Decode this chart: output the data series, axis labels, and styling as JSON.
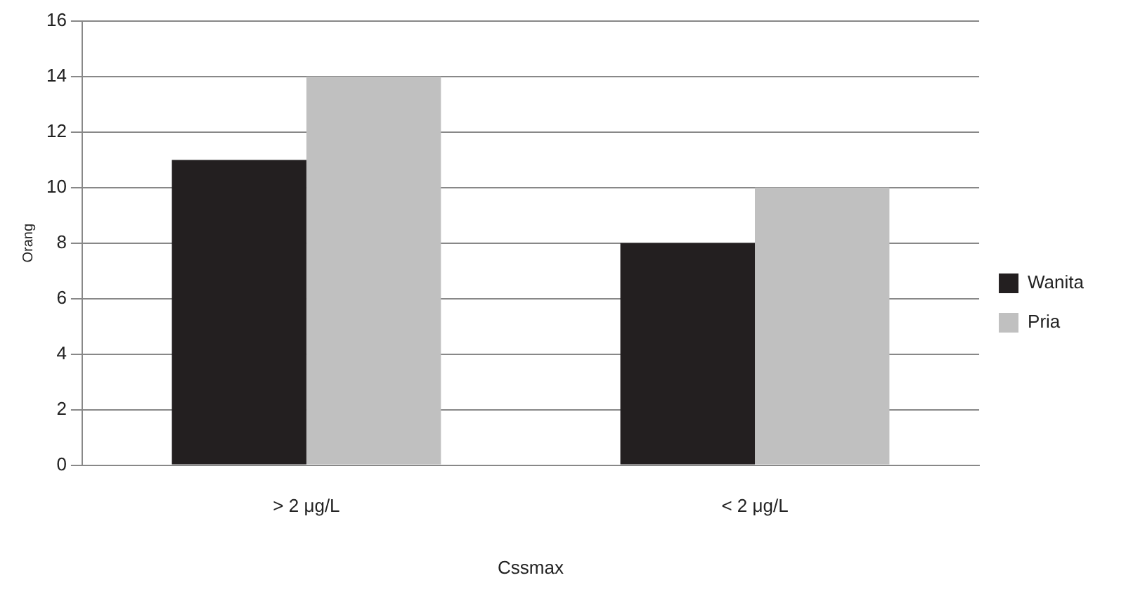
{
  "chart_data": {
    "type": "bar",
    "xlabel": "Cssmax",
    "ylabel": "Orang",
    "categories": [
      "> 2 μg/L",
      "< 2 μg/L"
    ],
    "series": [
      {
        "name": "Wanita",
        "color": "#231f20",
        "values": [
          11,
          8
        ]
      },
      {
        "name": "Pria",
        "color": "#c0c0c0",
        "values": [
          14,
          10
        ]
      }
    ],
    "ylim": [
      0,
      16
    ],
    "yticks": [
      0,
      2,
      4,
      6,
      8,
      10,
      12,
      14,
      16
    ],
    "grid": "y",
    "legend": "right"
  }
}
